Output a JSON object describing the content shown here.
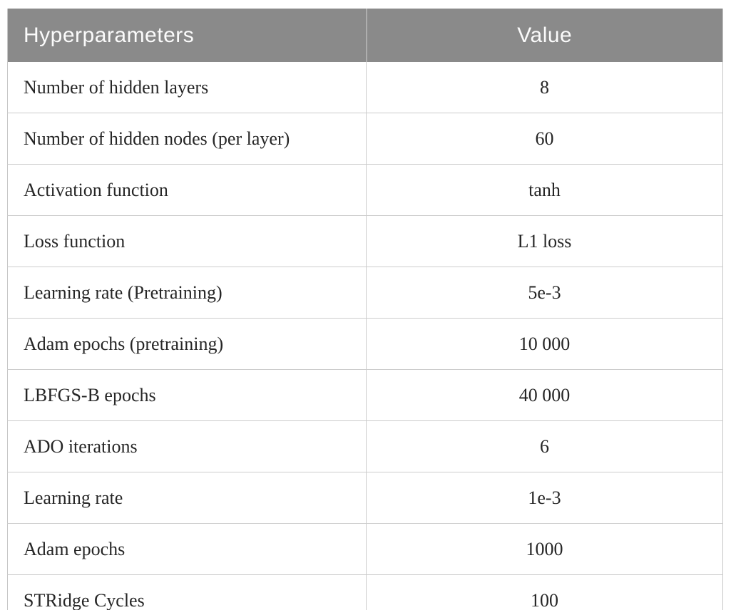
{
  "table": {
    "columns": {
      "param": "Hyperparameters",
      "value": "Value"
    },
    "rows": [
      {
        "label": "Number of hidden layers",
        "value": "8"
      },
      {
        "label": "Number of hidden nodes (per layer)",
        "value": "60"
      },
      {
        "label": "Activation function",
        "value": "tanh"
      },
      {
        "label": "Loss function",
        "value": "L1 loss"
      },
      {
        "label": "Learning rate (Pretraining)",
        "value": "5e-3"
      },
      {
        "label": "Adam epochs (pretraining)",
        "value": "10 000"
      },
      {
        "label": "LBFGS-B epochs",
        "value": "40 000"
      },
      {
        "label": "ADO iterations",
        "value": "6"
      },
      {
        "label": "Learning rate",
        "value": "1e-3"
      },
      {
        "label": "Adam epochs",
        "value": "1000"
      },
      {
        "label": "STRidge Cycles",
        "value": "100"
      }
    ],
    "colors": {
      "header_bg": "#8a8a8a",
      "header_text": "#fbfbfb",
      "body_text": "#262626",
      "row_border": "#cccccc",
      "outer_border": "#c6c6c6",
      "header_divider": "#aeaeae"
    }
  }
}
